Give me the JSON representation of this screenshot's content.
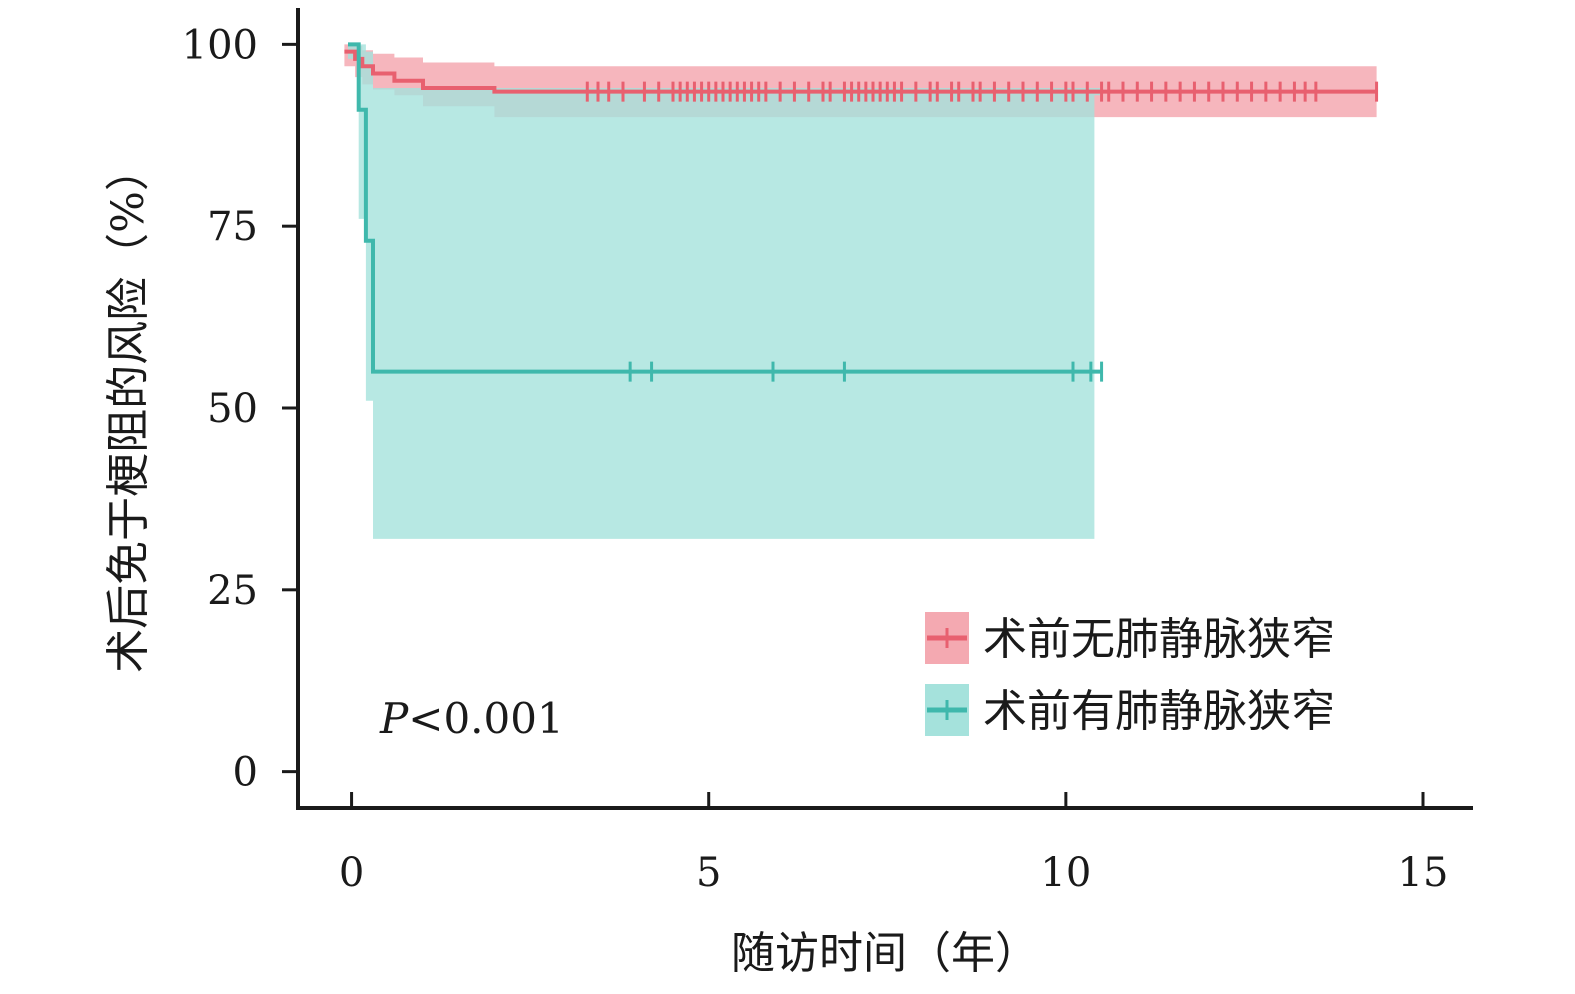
{
  "chart_data": {
    "type": "line",
    "subtype": "kaplan-meier step curve with confidence bands",
    "xlabel": "随访时间（年）",
    "ylabel": "术后免于梗阻的风险（%）",
    "xlim": [
      -0.75,
      15.7
    ],
    "ylim": [
      -5,
      105
    ],
    "x_ticks": [
      0,
      5,
      10,
      15
    ],
    "y_ticks": [
      0,
      25,
      50,
      75,
      100
    ],
    "grid": false,
    "legend_position": "bottom-right",
    "annotation": {
      "prefix": "P",
      "text": "<0.001"
    },
    "series": [
      {
        "name": "术前无肺静脉狭窄",
        "color": "#e8606f",
        "band_color": "#f4a9b1",
        "step_x": [
          -0.1,
          0.05,
          0.15,
          0.3,
          0.6,
          1.0,
          2.0,
          14.35
        ],
        "step_y": [
          99,
          98,
          97,
          96,
          95,
          94,
          93.5,
          93.5
        ],
        "ci_upper": [
          100,
          99.8,
          99.2,
          98.7,
          98.2,
          97.5,
          97,
          97
        ],
        "ci_lower": [
          97,
          95.5,
          94.5,
          93.8,
          93,
          91.5,
          90,
          90
        ],
        "censor_x": [
          3.3,
          3.45,
          3.6,
          3.8,
          4.1,
          4.3,
          4.5,
          4.6,
          4.7,
          4.8,
          4.9,
          5.0,
          5.1,
          5.2,
          5.3,
          5.4,
          5.5,
          5.6,
          5.7,
          5.8,
          6.0,
          6.2,
          6.4,
          6.6,
          6.7,
          6.9,
          7.0,
          7.1,
          7.2,
          7.3,
          7.4,
          7.5,
          7.6,
          7.7,
          7.9,
          8.1,
          8.2,
          8.4,
          8.5,
          8.7,
          8.8,
          9.0,
          9.2,
          9.4,
          9.6,
          9.8,
          10.0,
          10.1,
          10.3,
          10.5,
          10.6,
          10.8,
          11.0,
          11.2,
          11.4,
          11.6,
          11.8,
          12.0,
          12.2,
          12.4,
          12.6,
          12.8,
          13.0,
          13.2,
          13.35,
          13.5,
          14.35
        ]
      },
      {
        "name": "术前有肺静脉狭窄",
        "color": "#3fb8ac",
        "band_color": "#a5e2dc",
        "step_x": [
          -0.05,
          0.1,
          0.2,
          0.3,
          10.5
        ],
        "step_y": [
          100,
          91,
          73,
          55,
          55
        ],
        "ci_upper": [
          100,
          100,
          99,
          94,
          93
        ],
        "ci_lower": [
          98,
          76,
          51,
          32,
          32
        ],
        "band_end": 10.4,
        "censor_x": [
          3.9,
          4.2,
          5.9,
          6.9,
          10.1,
          10.35,
          10.5
        ]
      }
    ]
  }
}
